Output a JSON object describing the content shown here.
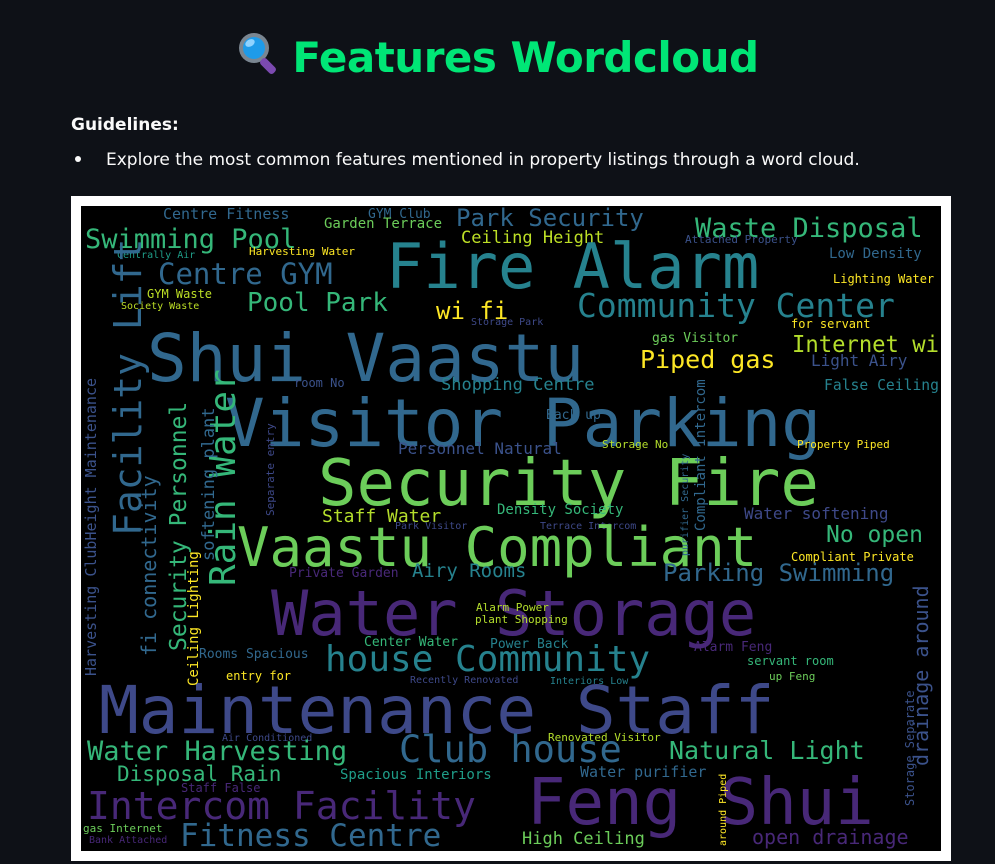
{
  "header": {
    "title": "Features Wordcloud",
    "icon": "magnifying-glass-icon"
  },
  "guidelines": {
    "label": "Guidelines:",
    "items": [
      "Explore the most common features mentioned in property listings through a word cloud."
    ]
  },
  "wordcloud": {
    "background": "#000000",
    "words": [
      {
        "text": "Centre Fitness",
        "color": "#31688e"
      },
      {
        "text": "GYM Club",
        "color": "#31688e"
      },
      {
        "text": "Park Security",
        "color": "#31688e"
      },
      {
        "text": "Garden Terrace",
        "color": "#6ccd5a"
      },
      {
        "text": "Waste Disposal",
        "color": "#35b779"
      },
      {
        "text": "Swimming Pool",
        "color": "#35b779"
      },
      {
        "text": "Ceiling Height",
        "color": "#bddf26"
      },
      {
        "text": "Attached Property",
        "color": "#3b528b"
      },
      {
        "text": "Harvesting Water",
        "color": "#fde725"
      },
      {
        "text": "Fire Alarm",
        "color": "#26828e"
      },
      {
        "text": "Centrally Air",
        "color": "#1f9e89"
      },
      {
        "text": "Low Density",
        "color": "#31688e"
      },
      {
        "text": "Centre GYM",
        "color": "#31688e"
      },
      {
        "text": "Lighting Water",
        "color": "#fde725"
      },
      {
        "text": "GYM Waste",
        "color": "#bddf26"
      },
      {
        "text": "Pool Park",
        "color": "#35b779"
      },
      {
        "text": "Community Center",
        "color": "#26828e"
      },
      {
        "text": "Society Waste",
        "color": "#bddf26"
      },
      {
        "text": "wi fi",
        "color": "#fde725"
      },
      {
        "text": "Storage Park",
        "color": "#3e4989"
      },
      {
        "text": "for servant",
        "color": "#fde725"
      },
      {
        "text": "Shui Vaastu",
        "color": "#31688e"
      },
      {
        "text": "gas Visitor",
        "color": "#6ccd5a"
      },
      {
        "text": "Internet wi",
        "color": "#b4de2c"
      },
      {
        "text": "Piped gas",
        "color": "#fde725"
      },
      {
        "text": "Light Airy",
        "color": "#3b528b"
      },
      {
        "text": "room No",
        "color": "#3b528b"
      },
      {
        "text": "Shopping Centre",
        "color": "#26828e"
      },
      {
        "text": "False Ceiling",
        "color": "#26828e"
      },
      {
        "text": "Visitor Parking",
        "color": "#31688e"
      },
      {
        "text": "Back up",
        "color": "#31688e"
      },
      {
        "text": "Storage No",
        "color": "#b4de2c"
      },
      {
        "text": "Personnel Natural",
        "color": "#3b528b"
      },
      {
        "text": "Property Piped",
        "color": "#fde725"
      },
      {
        "text": "Security Fire",
        "color": "#6ccd5a"
      },
      {
        "text": "Staff Water",
        "color": "#b4de2c"
      },
      {
        "text": "Density Society",
        "color": "#35b779"
      },
      {
        "text": "Water softening",
        "color": "#3e4989"
      },
      {
        "text": "Park Visitor",
        "color": "#3e4989"
      },
      {
        "text": "Terrace Intercom",
        "color": "#3e4989"
      },
      {
        "text": "Vaastu Compliant",
        "color": "#6ccd5a"
      },
      {
        "text": "No open",
        "color": "#35b779"
      },
      {
        "text": "Compliant Private",
        "color": "#fde725"
      },
      {
        "text": "Private Garden",
        "color": "#482878"
      },
      {
        "text": "Airy Rooms",
        "color": "#26828e"
      },
      {
        "text": "Parking Swimming",
        "color": "#31688e"
      },
      {
        "text": "Water Storage",
        "color": "#482878"
      },
      {
        "text": "Alarm Power",
        "color": "#b4de2c"
      },
      {
        "text": "plant Shopping",
        "color": "#b4de2c"
      },
      {
        "text": "Center Water",
        "color": "#35b779"
      },
      {
        "text": "Power Back",
        "color": "#26828e"
      },
      {
        "text": "Alarm Feng",
        "color": "#482878"
      },
      {
        "text": "house Community",
        "color": "#26828e"
      },
      {
        "text": "Rooms Spacious",
        "color": "#31688e"
      },
      {
        "text": "servant room",
        "color": "#35b779"
      },
      {
        "text": "entry for",
        "color": "#fde725"
      },
      {
        "text": "Recently Renovated",
        "color": "#3e4989"
      },
      {
        "text": "Interiors Low",
        "color": "#26828e"
      },
      {
        "text": "up Feng",
        "color": "#6ccd5a"
      },
      {
        "text": "Maintenance Staff",
        "color": "#3e4989"
      },
      {
        "text": "Air Conditioned",
        "color": "#3e4989"
      },
      {
        "text": "Renovated Visitor",
        "color": "#b4de2c"
      },
      {
        "text": "Water Harvesting",
        "color": "#35b779"
      },
      {
        "text": "Club house",
        "color": "#31688e"
      },
      {
        "text": "Natural Light",
        "color": "#35b779"
      },
      {
        "text": "Disposal Rain",
        "color": "#35b779"
      },
      {
        "text": "Spacious Interiors",
        "color": "#1f9e89"
      },
      {
        "text": "Water purifier",
        "color": "#31688e"
      },
      {
        "text": "Staff False",
        "color": "#482878"
      },
      {
        "text": "Intercom Facility",
        "color": "#482878"
      },
      {
        "text": "Feng Shui",
        "color": "#482878"
      },
      {
        "text": "gas Internet",
        "color": "#6ccd5a"
      },
      {
        "text": "Bank Attached",
        "color": "#482878"
      },
      {
        "text": "Fitness Centre",
        "color": "#31688e"
      },
      {
        "text": "High Ceiling",
        "color": "#6ccd5a"
      },
      {
        "text": "open drainage",
        "color": "#482878"
      },
      {
        "text": "Facility Lift",
        "color": "#31688e"
      },
      {
        "text": "Harvesting ClubHeight Maintenance",
        "color": "#3b528b"
      },
      {
        "text": "fi connectivity",
        "color": "#31688e"
      },
      {
        "text": "Security Personnel",
        "color": "#35b779"
      },
      {
        "text": "Rain Water",
        "color": "#35b779"
      },
      {
        "text": "Ceiling Lighting",
        "color": "#fde725"
      },
      {
        "text": "softening plant",
        "color": "#31688e"
      },
      {
        "text": "Separate entry",
        "color": "#3e4989"
      },
      {
        "text": "purifier Security",
        "color": "#31688e"
      },
      {
        "text": "Compliant Intercom",
        "color": "#31688e"
      },
      {
        "text": "drainage around",
        "color": "#3b528b"
      },
      {
        "text": "Storage Separate",
        "color": "#3b528b"
      },
      {
        "text": "around Piped",
        "color": "#fde725"
      }
    ]
  }
}
